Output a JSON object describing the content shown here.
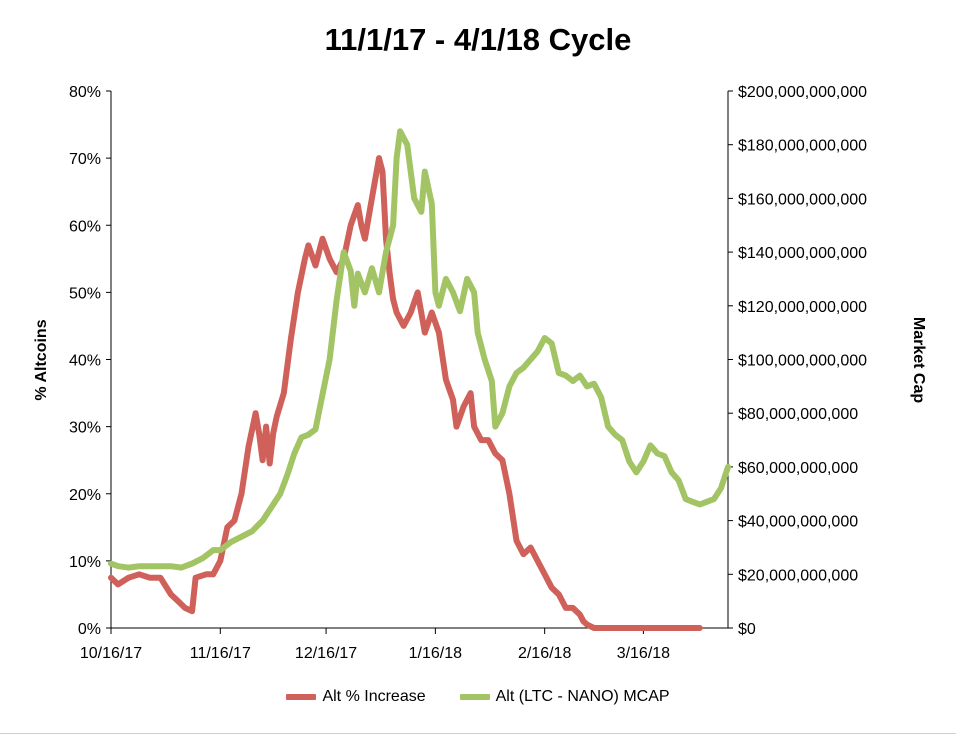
{
  "chart_data": {
    "type": "line",
    "title": "11/1/17 - 4/1/18 Cycle",
    "ylabel_left": "% Altcoins",
    "ylabel_right": "Market Cap",
    "x_tick_labels": [
      "10/16/17",
      "11/16/17",
      "12/16/17",
      "1/16/18",
      "2/16/18",
      "3/16/18"
    ],
    "y_left_ticks": [
      "0%",
      "10%",
      "20%",
      "30%",
      "40%",
      "50%",
      "60%",
      "70%",
      "80%"
    ],
    "y_right_ticks": [
      "$0",
      "$20,000,000,000",
      "$40,000,000,000",
      "$60,000,000,000",
      "$80,000,000,000",
      "$100,000,000,000",
      "$120,000,000,000",
      "$140,000,000,000",
      "$160,000,000,000",
      "$180,000,000,000",
      "$200,000,000,000"
    ],
    "ylim_left": [
      0,
      80
    ],
    "ylim_right": [
      0,
      200000000000
    ],
    "grid": false,
    "legend_position": "bottom",
    "series": [
      {
        "name": "Alt % Increase",
        "color": "#d0605a",
        "axis": "left",
        "unit": "percent",
        "points": [
          [
            "10/16/17",
            7.5
          ],
          [
            "10/18/17",
            6.5
          ],
          [
            "10/21/17",
            7.5
          ],
          [
            "10/24/17",
            8
          ],
          [
            "10/27/17",
            7.5
          ],
          [
            "10/30/17",
            7.5
          ],
          [
            "11/2/17",
            5
          ],
          [
            "11/4/17",
            4
          ],
          [
            "11/6/17",
            3
          ],
          [
            "11/8/17",
            2.5
          ],
          [
            "11/9/17",
            7.5
          ],
          [
            "11/12/17",
            8
          ],
          [
            "11/14/17",
            8
          ],
          [
            "11/16/17",
            10
          ],
          [
            "11/18/17",
            15
          ],
          [
            "11/20/17",
            16
          ],
          [
            "11/22/17",
            20
          ],
          [
            "11/24/17",
            27
          ],
          [
            "11/26/17",
            32
          ],
          [
            "11/27/17",
            29
          ],
          [
            "11/28/17",
            25
          ],
          [
            "11/29/17",
            30
          ],
          [
            "11/30/17",
            24.5
          ],
          [
            "12/1/17",
            29
          ],
          [
            "12/2/17",
            31.5
          ],
          [
            "12/4/17",
            35
          ],
          [
            "12/6/17",
            43
          ],
          [
            "12/8/17",
            50
          ],
          [
            "12/10/17",
            55
          ],
          [
            "12/11/17",
            57
          ],
          [
            "12/13/17",
            54
          ],
          [
            "12/15/17",
            58
          ],
          [
            "12/17/17",
            55
          ],
          [
            "12/19/17",
            53
          ],
          [
            "12/21/17",
            55
          ],
          [
            "12/23/17",
            60
          ],
          [
            "12/25/17",
            63
          ],
          [
            "12/26/17",
            60
          ],
          [
            "12/27/17",
            58
          ],
          [
            "12/29/17",
            64
          ],
          [
            "12/31/17",
            70
          ],
          [
            "1/1/18",
            68
          ],
          [
            "1/2/18",
            58
          ],
          [
            "1/3/18",
            53
          ],
          [
            "1/4/18",
            49
          ],
          [
            "1/5/18",
            47
          ],
          [
            "1/7/18",
            45
          ],
          [
            "1/9/18",
            47
          ],
          [
            "1/11/18",
            50
          ],
          [
            "1/13/18",
            44
          ],
          [
            "1/15/18",
            47
          ],
          [
            "1/17/18",
            44
          ],
          [
            "1/19/18",
            37
          ],
          [
            "1/21/18",
            34
          ],
          [
            "1/22/18",
            30
          ],
          [
            "1/24/18",
            33
          ],
          [
            "1/26/18",
            35
          ],
          [
            "1/27/18",
            30
          ],
          [
            "1/29/18",
            28
          ],
          [
            "1/31/18",
            28
          ],
          [
            "2/2/18",
            26
          ],
          [
            "2/4/18",
            25
          ],
          [
            "2/6/18",
            20
          ],
          [
            "2/8/18",
            13
          ],
          [
            "2/10/18",
            11
          ],
          [
            "2/12/18",
            12
          ],
          [
            "2/14/18",
            10
          ],
          [
            "2/16/18",
            8
          ],
          [
            "2/18/18",
            6
          ],
          [
            "2/20/18",
            5
          ],
          [
            "2/22/18",
            3
          ],
          [
            "2/24/18",
            3
          ],
          [
            "2/26/18",
            2
          ],
          [
            "2/27/18",
            1
          ],
          [
            "2/28/18",
            0.5
          ],
          [
            "3/2/18",
            0
          ],
          [
            "3/10/18",
            0
          ],
          [
            "3/20/18",
            0
          ],
          [
            "4/1/18",
            0
          ]
        ]
      },
      {
        "name": "Alt (LTC - NANO) MCAP",
        "color": "#a3c464",
        "axis": "right",
        "unit": "USD",
        "points": [
          [
            "10/16/17",
            24000000000
          ],
          [
            "10/18/17",
            23000000000
          ],
          [
            "10/21/17",
            22500000000
          ],
          [
            "10/24/17",
            23000000000
          ],
          [
            "10/27/17",
            23000000000
          ],
          [
            "10/30/17",
            23000000000
          ],
          [
            "11/2/17",
            23000000000
          ],
          [
            "11/5/17",
            22500000000
          ],
          [
            "11/8/17",
            24000000000
          ],
          [
            "11/11/17",
            26000000000
          ],
          [
            "11/14/17",
            29000000000
          ],
          [
            "11/16/17",
            29000000000
          ],
          [
            "11/19/17",
            32000000000
          ],
          [
            "11/22/17",
            34000000000
          ],
          [
            "11/25/17",
            36000000000
          ],
          [
            "11/28/17",
            40000000000
          ],
          [
            "12/1/17",
            46000000000
          ],
          [
            "12/3/17",
            50000000000
          ],
          [
            "12/5/17",
            57000000000
          ],
          [
            "12/7/17",
            65000000000
          ],
          [
            "12/9/17",
            71000000000
          ],
          [
            "12/11/17",
            72000000000
          ],
          [
            "12/13/17",
            74000000000
          ],
          [
            "12/15/17",
            87000000000
          ],
          [
            "12/17/17",
            100000000000
          ],
          [
            "12/19/17",
            122000000000
          ],
          [
            "12/21/17",
            140000000000
          ],
          [
            "12/23/17",
            133000000000
          ],
          [
            "12/24/17",
            120000000000
          ],
          [
            "12/25/17",
            132000000000
          ],
          [
            "12/27/17",
            125000000000
          ],
          [
            "12/29/17",
            134000000000
          ],
          [
            "12/31/17",
            125000000000
          ],
          [
            "1/2/18",
            140000000000
          ],
          [
            "1/4/18",
            150000000000
          ],
          [
            "1/5/18",
            175000000000
          ],
          [
            "1/6/18",
            185000000000
          ],
          [
            "1/8/18",
            180000000000
          ],
          [
            "1/10/18",
            160000000000
          ],
          [
            "1/12/18",
            155000000000
          ],
          [
            "1/13/18",
            170000000000
          ],
          [
            "1/15/18",
            158000000000
          ],
          [
            "1/16/18",
            125000000000
          ],
          [
            "1/17/18",
            120000000000
          ],
          [
            "1/19/18",
            130000000000
          ],
          [
            "1/21/18",
            125000000000
          ],
          [
            "1/23/18",
            118000000000
          ],
          [
            "1/25/18",
            130000000000
          ],
          [
            "1/27/18",
            125000000000
          ],
          [
            "1/28/18",
            110000000000
          ],
          [
            "1/30/18",
            100000000000
          ],
          [
            "2/1/18",
            92000000000
          ],
          [
            "2/2/18",
            75000000000
          ],
          [
            "2/4/18",
            80000000000
          ],
          [
            "2/6/18",
            90000000000
          ],
          [
            "2/8/18",
            95000000000
          ],
          [
            "2/10/18",
            97000000000
          ],
          [
            "2/12/18",
            100000000000
          ],
          [
            "2/14/18",
            103000000000
          ],
          [
            "2/16/18",
            108000000000
          ],
          [
            "2/18/18",
            106000000000
          ],
          [
            "2/20/18",
            95000000000
          ],
          [
            "2/22/18",
            94000000000
          ],
          [
            "2/24/18",
            92000000000
          ],
          [
            "2/26/18",
            94000000000
          ],
          [
            "2/28/18",
            90000000000
          ],
          [
            "3/2/18",
            91000000000
          ],
          [
            "3/4/18",
            86000000000
          ],
          [
            "3/6/18",
            75000000000
          ],
          [
            "3/8/18",
            72000000000
          ],
          [
            "3/10/18",
            70000000000
          ],
          [
            "3/12/18",
            62000000000
          ],
          [
            "3/14/18",
            58000000000
          ],
          [
            "3/16/18",
            62000000000
          ],
          [
            "3/18/18",
            68000000000
          ],
          [
            "3/20/18",
            65000000000
          ],
          [
            "3/22/18",
            64000000000
          ],
          [
            "3/24/18",
            58000000000
          ],
          [
            "3/26/18",
            55000000000
          ],
          [
            "3/28/18",
            48000000000
          ],
          [
            "3/30/18",
            47000000000
          ],
          [
            "4/1/18",
            46000000000
          ],
          [
            "4/3/18",
            47000000000
          ],
          [
            "4/5/18",
            48000000000
          ],
          [
            "4/7/18",
            52000000000
          ],
          [
            "4/9/18",
            60000000000
          ]
        ]
      }
    ]
  }
}
